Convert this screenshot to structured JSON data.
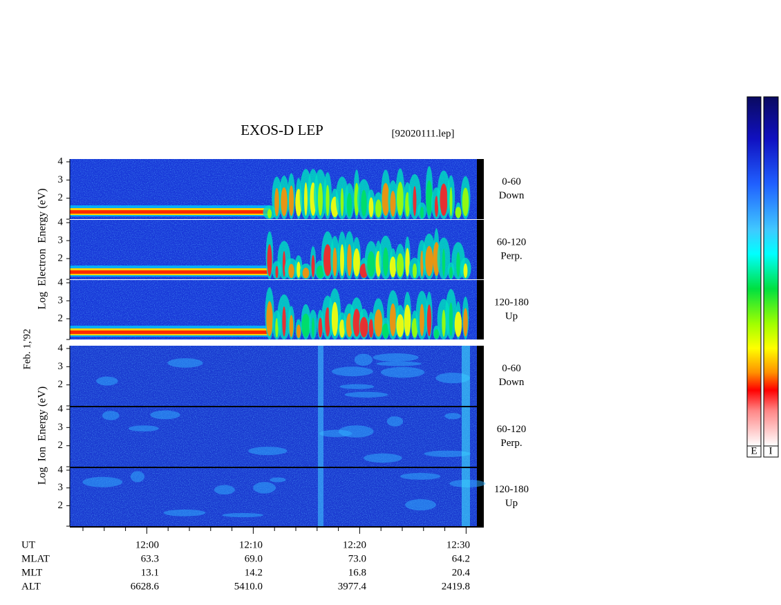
{
  "header": {
    "title": "EXOS-D LEP",
    "file": "[92020111.lep]"
  },
  "date": "Feb. 1,'92",
  "yticks": [
    2,
    3,
    4
  ],
  "electron": {
    "axis_label": "Log  Electron  Energy (eV)",
    "panels": [
      {
        "range": "0-60",
        "direction": "Down"
      },
      {
        "range": "60-120",
        "direction": "Perp."
      },
      {
        "range": "120-180",
        "direction": "Up"
      }
    ]
  },
  "ion": {
    "axis_label": "Log  Ion  Energy (eV)",
    "panels": [
      {
        "range": "0-60",
        "direction": "Down"
      },
      {
        "range": "60-120",
        "direction": "Perp."
      },
      {
        "range": "120-180",
        "direction": "Up"
      }
    ]
  },
  "orbit": {
    "rows": [
      {
        "label": "UT",
        "values": [
          "12:00",
          "12:10",
          "12:20",
          "12:30"
        ]
      },
      {
        "label": "MLAT",
        "values": [
          "63.3",
          "69.0",
          "73.0",
          "64.2"
        ]
      },
      {
        "label": "MLT",
        "values": [
          "13.1",
          "14.2",
          "16.8",
          "20.4"
        ]
      },
      {
        "label": "ALT",
        "values": [
          "6628.6",
          "5410.0",
          "3977.4",
          "2419.8"
        ]
      }
    ]
  },
  "colorbar": {
    "labels": [
      "E",
      "I"
    ]
  }
}
